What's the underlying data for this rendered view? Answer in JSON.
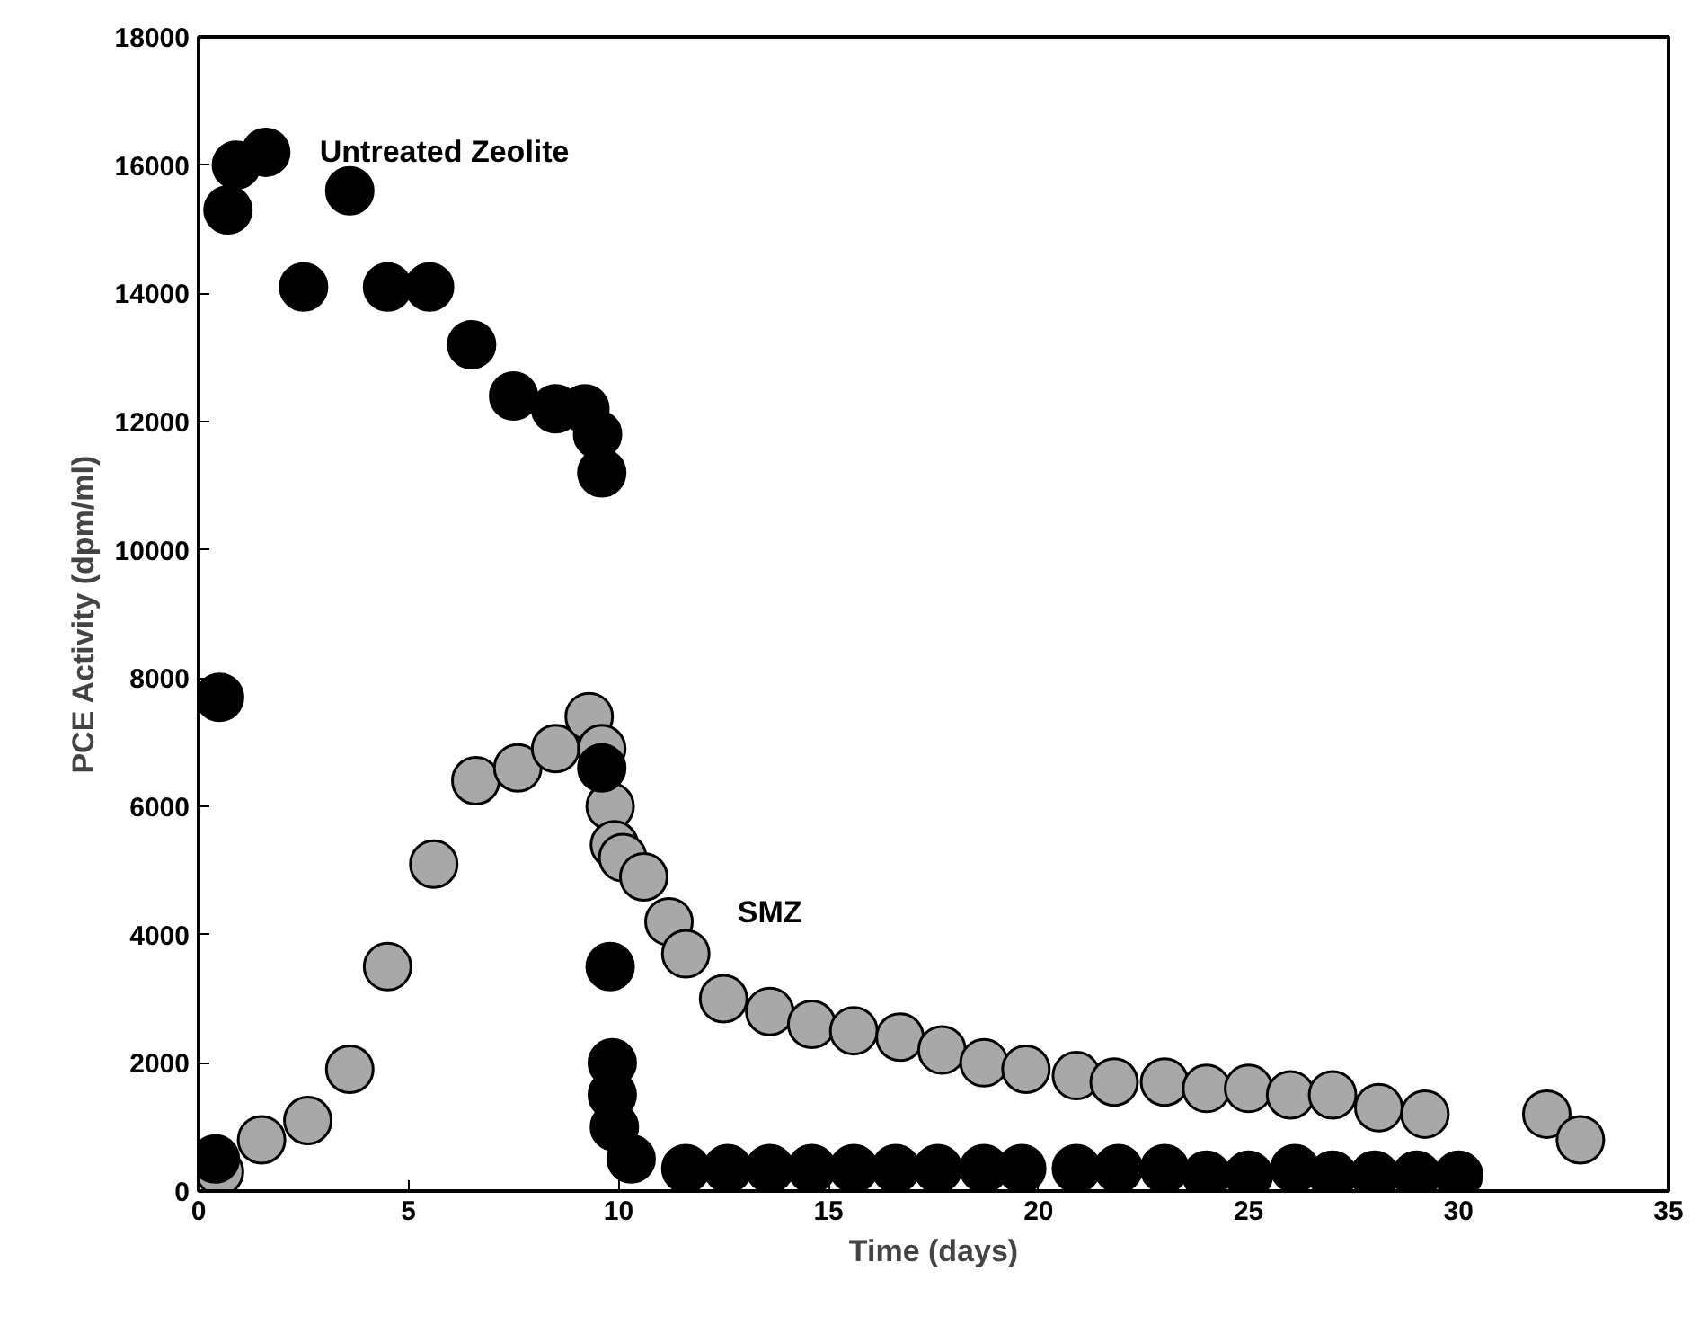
{
  "chart_data": {
    "type": "scatter",
    "xlabel": "Time (days)",
    "ylabel": "PCE Activity (dpm/ml)",
    "xlim": [
      0,
      35
    ],
    "xticks": [
      0,
      5,
      10,
      15,
      20,
      25,
      30,
      35
    ],
    "ylim": [
      0,
      18000
    ],
    "yticks": [
      0,
      2000,
      4000,
      6000,
      8000,
      10000,
      12000,
      14000,
      16000,
      18000
    ],
    "grid": false,
    "legend": false,
    "marker": "circle",
    "series": [
      {
        "name": "Untreated Zeolite",
        "color": "#000000",
        "x": [
          0.4,
          0.5,
          0.7,
          0.9,
          1.6,
          2.5,
          3.6,
          4.5,
          5.5,
          6.5,
          7.5,
          8.5,
          9.2,
          9.5,
          9.6,
          9.6,
          9.8,
          9.85,
          9.85,
          9.9,
          10.3,
          11.6,
          12.6,
          13.6,
          14.6,
          15.6,
          16.6,
          17.6,
          18.7,
          19.6,
          20.9,
          21.9,
          23.0,
          24.0,
          25.0,
          26.1,
          27.0,
          28.0,
          29.0,
          30.0
        ],
        "values": [
          500,
          7700,
          15300,
          16000,
          16200,
          14100,
          15600,
          14100,
          14100,
          13200,
          12400,
          12200,
          12200,
          11800,
          11200,
          6600,
          3500,
          2000,
          1500,
          1000,
          500,
          350,
          350,
          350,
          350,
          350,
          350,
          350,
          350,
          350,
          350,
          350,
          350,
          250,
          250,
          350,
          250,
          250,
          250,
          250
        ]
      },
      {
        "name": "SMZ",
        "color": "#a8a8a8",
        "x": [
          0.5,
          1.5,
          2.6,
          3.6,
          4.5,
          5.6,
          6.6,
          7.6,
          8.5,
          9.3,
          9.6,
          9.8,
          9.9,
          10.1,
          10.6,
          11.2,
          11.6,
          12.5,
          13.6,
          14.6,
          15.6,
          16.7,
          17.7,
          18.7,
          19.7,
          20.9,
          21.8,
          23.0,
          24.0,
          25.0,
          26.0,
          27.0,
          28.1,
          29.2,
          32.1,
          32.9
        ],
        "values": [
          300,
          800,
          1100,
          1900,
          3500,
          5100,
          6400,
          6600,
          6900,
          7400,
          6900,
          6000,
          5400,
          5200,
          4900,
          4200,
          3700,
          3000,
          2800,
          2600,
          2500,
          2400,
          2200,
          2000,
          1900,
          1800,
          1700,
          1700,
          1600,
          1600,
          1500,
          1500,
          1300,
          1200,
          1200,
          800
        ]
      }
    ]
  }
}
